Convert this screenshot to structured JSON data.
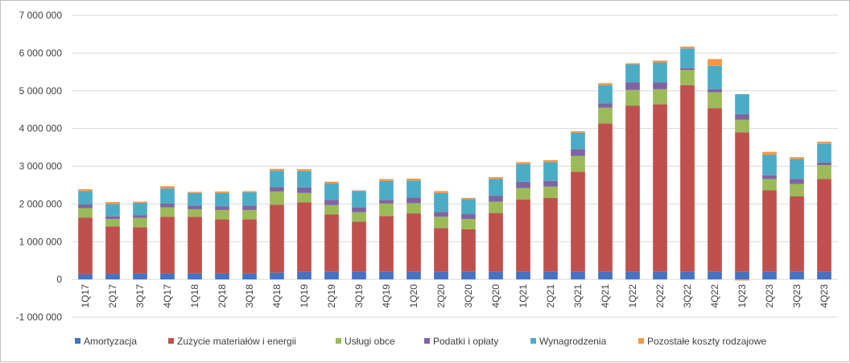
{
  "chart_data": {
    "type": "bar",
    "stacked": true,
    "title": "",
    "xlabel": "",
    "ylabel": "",
    "ylim": [
      -1000000,
      7000000
    ],
    "yticks": [
      -1000000,
      0,
      1000000,
      2000000,
      3000000,
      4000000,
      5000000,
      6000000,
      7000000
    ],
    "ytick_labels": [
      "-1 000 000",
      "0",
      "1 000 000",
      "2 000 000",
      "3 000 000",
      "4 000 000",
      "5 000 000",
      "6 000 000",
      "7 000 000"
    ],
    "grid": true,
    "legend": "bottom",
    "categories": [
      "1Q17",
      "2Q17",
      "3Q17",
      "4Q17",
      "1Q18",
      "2Q18",
      "3Q18",
      "4Q18",
      "1Q19",
      "2Q19",
      "3Q19",
      "4Q19",
      "1Q20",
      "2Q20",
      "3Q20",
      "4Q20",
      "1Q21",
      "2Q21",
      "3Q21",
      "4Q21",
      "1Q22",
      "2Q22",
      "3Q22",
      "4Q22",
      "1Q23",
      "2Q23",
      "3Q23",
      "4Q23"
    ],
    "series": [
      {
        "name": "Amortyzacja",
        "color": "#4472C4",
        "values": [
          140000,
          150000,
          160000,
          160000,
          160000,
          160000,
          160000,
          180000,
          200000,
          200000,
          200000,
          200000,
          200000,
          200000,
          200000,
          200000,
          200000,
          200000,
          200000,
          200000,
          200000,
          200000,
          200000,
          200000,
          200000,
          200000,
          200000,
          200000
        ]
      },
      {
        "name": "Zużycie materiałów i energii",
        "color": "#C0504D",
        "values": [
          1500000,
          1250000,
          1220000,
          1500000,
          1500000,
          1430000,
          1430000,
          1800000,
          1840000,
          1520000,
          1330000,
          1480000,
          1550000,
          1160000,
          1130000,
          1560000,
          1920000,
          1960000,
          2650000,
          3930000,
          4400000,
          4440000,
          4950000,
          4340000,
          3700000,
          2160000,
          2000000,
          2460000
        ]
      },
      {
        "name": "Usługi obce",
        "color": "#9BBB59",
        "values": [
          250000,
          200000,
          250000,
          250000,
          200000,
          250000,
          250000,
          350000,
          250000,
          250000,
          250000,
          330000,
          270000,
          300000,
          270000,
          300000,
          300000,
          300000,
          420000,
          420000,
          420000,
          400000,
          400000,
          420000,
          330000,
          300000,
          330000,
          370000
        ]
      },
      {
        "name": "Podatki i opłaty",
        "color": "#8064A2",
        "values": [
          100000,
          70000,
          70000,
          100000,
          100000,
          100000,
          120000,
          120000,
          150000,
          140000,
          130000,
          100000,
          150000,
          130000,
          130000,
          150000,
          170000,
          150000,
          180000,
          120000,
          200000,
          180000,
          50000,
          80000,
          150000,
          100000,
          130000,
          70000
        ]
      },
      {
        "name": "Wynagrodzenia",
        "color": "#4BACC6",
        "values": [
          350000,
          330000,
          330000,
          400000,
          330000,
          350000,
          350000,
          430000,
          430000,
          430000,
          430000,
          500000,
          450000,
          500000,
          400000,
          450000,
          470000,
          500000,
          440000,
          480000,
          480000,
          530000,
          520000,
          620000,
          530000,
          540000,
          530000,
          490000
        ]
      },
      {
        "name": "Pozostałe koszty rodzajowe",
        "color": "#F79646",
        "values": [
          50000,
          50000,
          30000,
          60000,
          30000,
          40000,
          30000,
          50000,
          50000,
          50000,
          20000,
          50000,
          50000,
          50000,
          30000,
          50000,
          50000,
          50000,
          40000,
          50000,
          30000,
          50000,
          50000,
          180000,
          -30000,
          80000,
          50000,
          60000
        ]
      }
    ]
  }
}
